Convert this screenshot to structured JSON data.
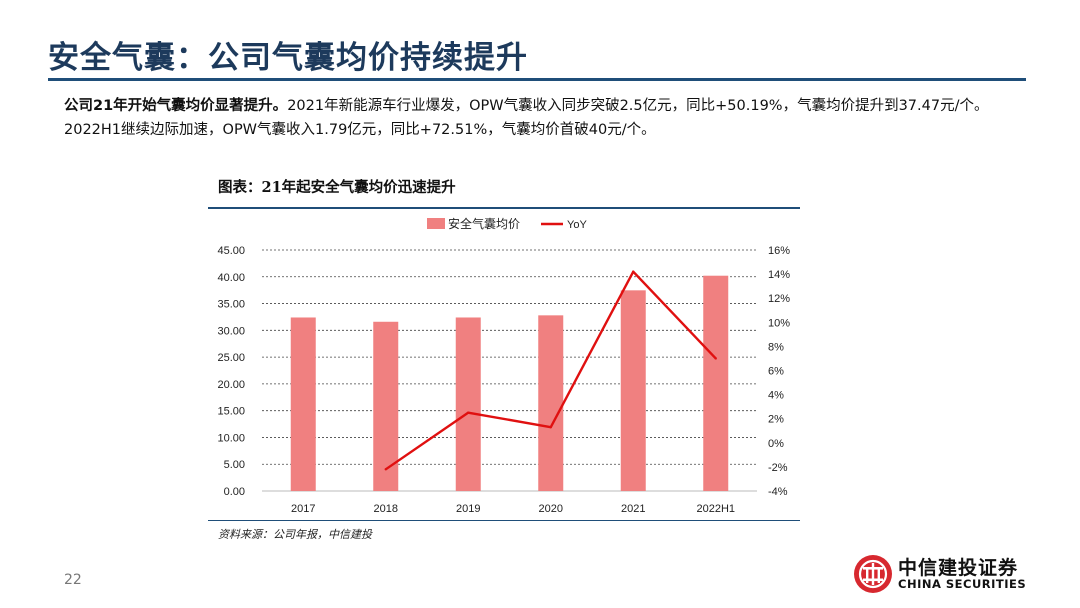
{
  "slide": {
    "title": "安全气囊：公司气囊均价持续提升",
    "summary_bold": "公司21年开始气囊均价显著提升。",
    "summary_rest": "2021年新能源车行业爆发，OPW气囊收入同步突破2.5亿元，同比+50.19%，气囊均价提升到37.47元/个。2022H1继续边际加速，OPW气囊收入1.79亿元，同比+72.51%，气囊均价首破40元/个。",
    "figure_title": "图表：21年起安全气囊均价迅速提升",
    "source": "资料来源：公司年报，中信建投",
    "page_number": "22",
    "logo_cn": "中信建投证券",
    "logo_en": "CHINA SECURITIES",
    "logo_icon": "china-securities-logo-icon",
    "logo_color": "#d7282f"
  },
  "chart_data": {
    "type": "bar",
    "categories": [
      "2017",
      "2018",
      "2019",
      "2020",
      "2021",
      "2022H1"
    ],
    "series": [
      {
        "name": "安全气囊均价",
        "type": "bar",
        "axis": "left",
        "color": "#f08080",
        "values": [
          32.4,
          31.6,
          32.4,
          32.8,
          37.47,
          40.2
        ]
      },
      {
        "name": "YoY",
        "type": "line",
        "axis": "right",
        "color": "#e01010",
        "values": [
          null,
          -2.2,
          2.5,
          1.3,
          14.2,
          7.0
        ]
      }
    ],
    "left_ticks": [
      "0.00",
      "5.00",
      "10.00",
      "15.00",
      "20.00",
      "25.00",
      "30.00",
      "35.00",
      "40.00",
      "45.00"
    ],
    "right_ticks": [
      "-4%",
      "-2%",
      "0%",
      "2%",
      "4%",
      "6%",
      "8%",
      "10%",
      "12%",
      "14%",
      "16%"
    ],
    "ylim_left": [
      0,
      45
    ],
    "ylim_right": [
      -4,
      16
    ],
    "grid": "dashed horizontal",
    "legend_position": "top"
  }
}
